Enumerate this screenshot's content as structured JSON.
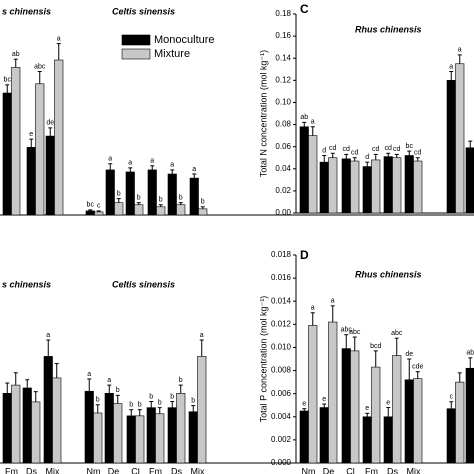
{
  "chart_data": [
    {
      "type": "bar",
      "titles": [
        "s chinensis",
        "Celtis sinensis"
      ],
      "ylim": [
        0,
        100
      ],
      "legend": true,
      "categories": [
        null,
        null,
        null,
        null,
        null,
        null,
        null,
        null,
        null
      ],
      "series": [
        {
          "name": "Monoculture",
          "color": "#000000",
          "values": [
            59.5,
            33,
            38.5,
            2,
            22,
            21,
            22,
            20,
            18
          ],
          "errors": [
            4,
            4,
            4,
            0.5,
            3,
            2,
            2,
            2,
            2
          ],
          "letters": [
            "bc",
            "e",
            "de",
            "bc",
            "a",
            "a",
            "a",
            "a",
            "a"
          ]
        },
        {
          "name": "Mixture",
          "color": "#c8c8c8",
          "values": [
            72,
            64,
            75.6,
            1.5,
            6,
            5,
            4,
            5,
            3
          ],
          "errors": [
            4,
            6,
            8,
            0.5,
            2,
            1,
            1,
            1,
            1
          ],
          "letters": [
            "ab",
            "abc",
            "a",
            "c",
            "b",
            "b",
            "b",
            "b",
            "b"
          ]
        }
      ]
    },
    {
      "type": "bar",
      "panel": "C",
      "titles": [
        "Rhus chinensis"
      ],
      "ylabel": "Total N concentration (mol kg⁻¹)",
      "ylim": [
        0,
        0.18
      ],
      "yticks": [
        {
          "value": 0,
          "label": "0.00"
        },
        {
          "value": 0.02,
          "label": "0.02"
        },
        {
          "value": 0.04,
          "label": "0.04"
        },
        {
          "value": 0.06,
          "label": "0.06"
        },
        {
          "value": 0.08,
          "label": "0.08"
        },
        {
          "value": 0.1,
          "label": "0.10"
        },
        {
          "value": 0.12,
          "label": "0.12"
        },
        {
          "value": 0.14,
          "label": "0.14"
        },
        {
          "value": 0.16,
          "label": "0.16"
        },
        {
          "value": 0.18,
          "label": "0.18"
        }
      ],
      "categories": [
        null,
        null,
        null,
        null,
        null,
        null,
        null,
        null
      ],
      "series": [
        {
          "color": "#000000",
          "values": [
            0.078,
            0.046,
            0.049,
            0.042,
            0.051,
            0.052,
            0.12,
            0.059
          ],
          "errors": [
            0.004,
            0.006,
            0.004,
            0.004,
            0.003,
            0.004,
            0.008,
            0.006
          ],
          "letters": [
            "ab",
            "d",
            "cd",
            "d",
            "cd",
            "bc",
            "a",
            null
          ]
        },
        {
          "color": "#c8c8c8",
          "values": [
            0.07,
            0.05,
            0.047,
            0.048,
            0.05,
            0.047,
            0.135,
            null
          ],
          "errors": [
            0.008,
            0.004,
            0.003,
            0.005,
            0.003,
            0.003,
            0.008,
            null
          ],
          "letters": [
            "a",
            "cd",
            "cd",
            "cd",
            "cd",
            "cd",
            "a",
            null
          ]
        }
      ]
    },
    {
      "type": "bar",
      "titles": [
        "s chinensis",
        "Celtis sinensis"
      ],
      "ylim": [
        0,
        100
      ],
      "categories": [
        "Fm",
        "Ds",
        "Mix",
        "Nm",
        "De",
        "Cl",
        "Fm",
        "Ds",
        "Mix"
      ],
      "series": [
        {
          "color": "#000000",
          "values": [
            34,
            36.6,
            52,
            35,
            34,
            23,
            27,
            27,
            25
          ],
          "errors": [
            5,
            4,
            8,
            6,
            4,
            3,
            3,
            3,
            3
          ],
          "letters": [
            null,
            null,
            "a",
            "a",
            "a",
            "b",
            "b",
            "b",
            "b"
          ]
        },
        {
          "color": "#c8c8c8",
          "values": [
            38,
            29.8,
            41.5,
            24.4,
            29,
            23,
            24,
            34,
            52
          ],
          "errors": [
            6,
            5,
            7,
            4,
            4,
            3,
            3,
            4,
            8
          ],
          "letters": [
            null,
            null,
            null,
            "b",
            "b",
            "b",
            "b",
            "b",
            "a"
          ]
        }
      ]
    },
    {
      "type": "bar",
      "panel": "D",
      "titles": [
        "Rhus chinensis"
      ],
      "ylabel": "Total P concentration (mol kg⁻¹)",
      "ylim": [
        0,
        0.018
      ],
      "yticks": [
        {
          "value": 0,
          "label": "0.000"
        },
        {
          "value": 0.002,
          "label": "0.002"
        },
        {
          "value": 0.004,
          "label": "0.004"
        },
        {
          "value": 0.006,
          "label": "0.006"
        },
        {
          "value": 0.008,
          "label": "0.008"
        },
        {
          "value": 0.01,
          "label": "0.010"
        },
        {
          "value": 0.012,
          "label": "0.012"
        },
        {
          "value": 0.014,
          "label": "0.014"
        },
        {
          "value": 0.016,
          "label": "0.016"
        },
        {
          "value": 0.018,
          "label": "0.018"
        }
      ],
      "categories": [
        "Nm",
        "De",
        "Cl",
        "Fm",
        "Ds",
        "Mix",
        null,
        null
      ],
      "series": [
        {
          "color": "#000000",
          "values": [
            0.0045,
            0.0048,
            0.0099,
            0.004,
            0.004,
            0.0072,
            0.0047,
            0.0082
          ],
          "errors": [
            0.0002,
            0.0003,
            0.0012,
            0.0003,
            0.0008,
            0.0018,
            0.0006,
            0.0009
          ],
          "letters": [
            "e",
            "e",
            "abc",
            "e",
            "e",
            "de",
            "c",
            "ab"
          ]
        },
        {
          "color": "#c8c8c8",
          "values": [
            0.0119,
            0.0122,
            0.0097,
            0.0083,
            0.0093,
            0.0073,
            0.007,
            null
          ],
          "errors": [
            0.0011,
            0.0014,
            0.0012,
            0.0014,
            0.0015,
            0.0006,
            0.0008,
            null
          ],
          "letters": [
            "a",
            "a",
            "abc",
            "bcd",
            "abc",
            "cde",
            null,
            null
          ]
        }
      ]
    }
  ]
}
